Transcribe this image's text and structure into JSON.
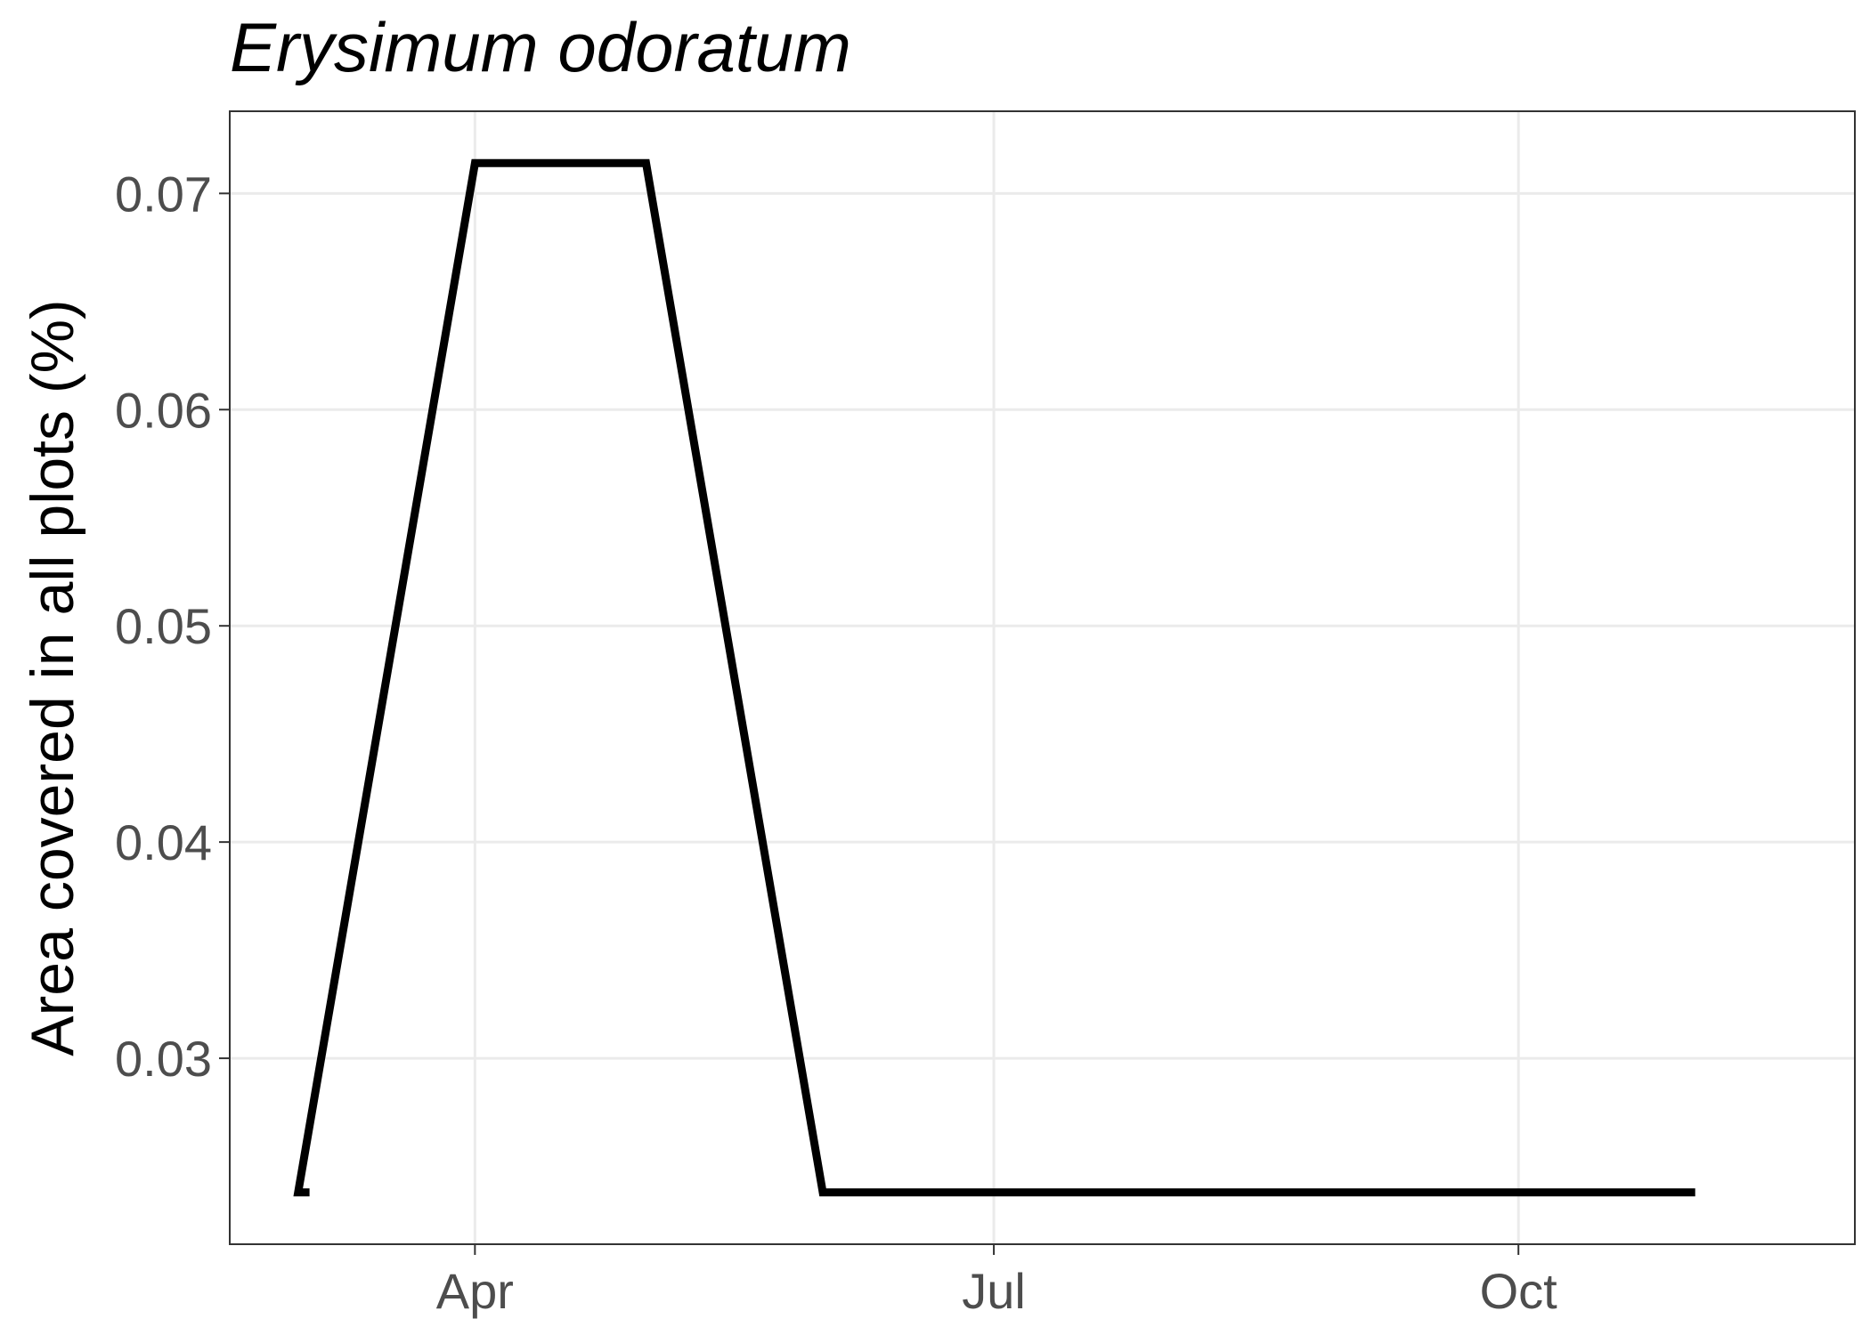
{
  "chart_data": {
    "type": "line",
    "title": "Erysimum odoratum",
    "xlabel": "",
    "ylabel": "Area covered in all plots (%)",
    "x_ticks": [
      {
        "label": "Apr",
        "date": "2020-04-01"
      },
      {
        "label": "Jul",
        "date": "2020-07-01"
      },
      {
        "label": "Oct",
        "date": "2020-10-01"
      }
    ],
    "y_ticks": [
      0.03,
      0.04,
      0.05,
      0.06,
      0.07
    ],
    "xlim": [
      "2020-02-18",
      "2020-11-29"
    ],
    "ylim": [
      0.0214,
      0.0738
    ],
    "grid": true,
    "series": [
      {
        "color": "#000000",
        "points": [
          {
            "x": "2020-03-03",
            "y": 0.0238
          },
          {
            "x": "2020-03-01",
            "y": 0.0238
          },
          {
            "x": "2020-04-01",
            "y": 0.0714
          },
          {
            "x": "2020-05-01",
            "y": 0.0714
          },
          {
            "x": "2020-06-01",
            "y": 0.0238
          },
          {
            "x": "2020-11-01",
            "y": 0.0238
          }
        ]
      }
    ]
  }
}
